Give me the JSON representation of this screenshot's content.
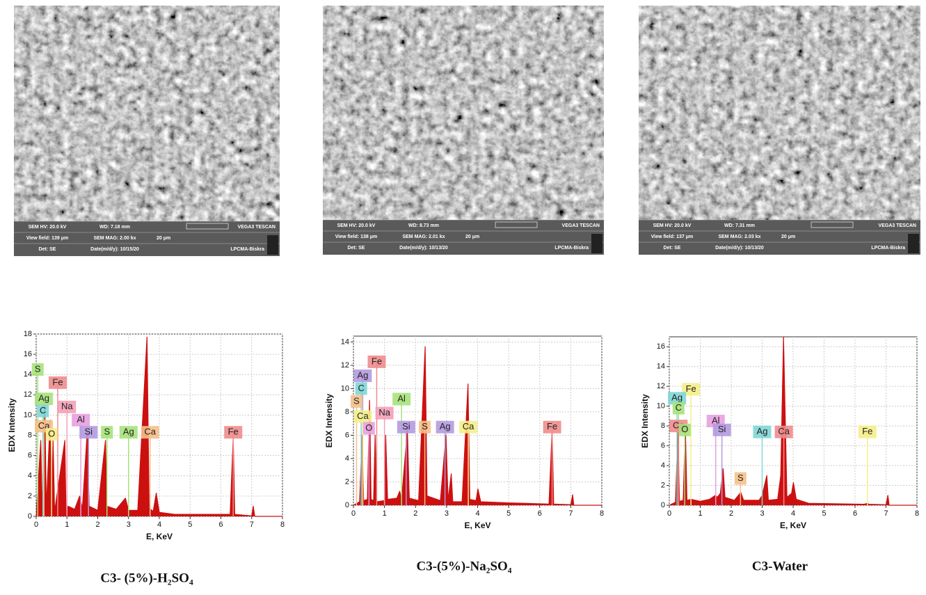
{
  "sem_images": [
    {
      "hv": "SEM HV: 20.0 kV",
      "wd": "WD: 7.18 mm",
      "brand": "VEGA3 TESCAN",
      "view_field": "View field: 139 μm",
      "mag": "SEM MAG: 2.00 kx",
      "scale": "20 μm",
      "det": "Det: SE",
      "date": "Date(m/d/y): 10/15/20",
      "lab": "LPCMA-Biskra"
    },
    {
      "hv": "SEM HV: 20.0 kV",
      "wd": "WD: 8.73 mm",
      "brand": "VEGA3 TESCAN",
      "view_field": "View field: 138 μm",
      "mag": "SEM MAG: 2.01 kx",
      "scale": "20 μm",
      "det": "Det: SE",
      "date": "Date(m/d/y): 10/13/20",
      "lab": "LPCMA-Biskra"
    },
    {
      "hv": "SEM HV: 20.0 kV",
      "wd": "WD: 7.31 mm",
      "brand": "VEGA3 TESCAN",
      "view_field": "View field: 137 μm",
      "mag": "SEM MAG: 2.03 kx",
      "scale": "20 μm",
      "det": "Det: SE",
      "date": "Date(m/d/y): 10/13/20",
      "lab": "LPCMA-Biskra"
    }
  ],
  "chart_data": [
    {
      "type": "line",
      "title": "C3- (5%)-H₂SO₄",
      "xlabel": "E, KeV",
      "ylabel": "EDX Intensity",
      "color": "#cc1010",
      "grid": true,
      "xlim": [
        0,
        8
      ],
      "ylim": [
        0,
        18
      ],
      "xticks": [
        0,
        1,
        2,
        3,
        4,
        5,
        6,
        7,
        8
      ],
      "yticks": [
        0,
        2,
        4,
        6,
        8,
        10,
        12,
        14,
        16,
        18
      ],
      "x": [
        0,
        0.15,
        0.2,
        0.28,
        0.33,
        0.45,
        0.5,
        0.55,
        0.6,
        0.93,
        0.97,
        1.04,
        1.25,
        1.41,
        1.5,
        1.66,
        1.72,
        2.0,
        2.25,
        2.3,
        2.6,
        2.9,
        3.0,
        3.3,
        3.6,
        3.67,
        3.8,
        3.9,
        4.0,
        4.5,
        6.3,
        6.4,
        6.45,
        7.0,
        7.05,
        7.1,
        8
      ],
      "values": [
        0,
        7.5,
        0.5,
        11,
        0.8,
        9.5,
        0.8,
        7.5,
        0.5,
        7.5,
        0.3,
        1,
        0.7,
        2,
        0.8,
        8.5,
        1,
        0.6,
        7.5,
        1,
        0.7,
        1.8,
        0.6,
        0.6,
        17.7,
        0.8,
        0.5,
        2.3,
        0.4,
        0.2,
        0.2,
        7.8,
        0.2,
        0.05,
        1,
        0,
        0
      ],
      "annotations": [
        {
          "text": "S",
          "x": 0.05,
          "y": 14.5,
          "color": "#a6e27a"
        },
        {
          "text": "Fe",
          "x": 0.7,
          "y": 13.2,
          "color": "#f08c8c"
        },
        {
          "text": "Ag",
          "x": 0.25,
          "y": 11.6,
          "color": "#a6e27a"
        },
        {
          "text": "C",
          "x": 0.22,
          "y": 10.4,
          "color": "#7fd6d6"
        },
        {
          "text": "Na",
          "x": 1.0,
          "y": 10.8,
          "color": "#f3a0b8"
        },
        {
          "text": "Al",
          "x": 1.45,
          "y": 9.5,
          "color": "#e8a0e0"
        },
        {
          "text": "Ca",
          "x": 0.25,
          "y": 8.9,
          "color": "#f5c08a"
        },
        {
          "text": "O",
          "x": 0.5,
          "y": 8.1,
          "color": "#f5ee8a"
        },
        {
          "text": "Si",
          "x": 1.7,
          "y": 8.3,
          "color": "#b49ae0"
        },
        {
          "text": "S",
          "x": 2.3,
          "y": 8.3,
          "color": "#a6e27a"
        },
        {
          "text": "Ag",
          "x": 3.0,
          "y": 8.3,
          "color": "#a6e27a"
        },
        {
          "text": "Ca",
          "x": 3.7,
          "y": 8.3,
          "color": "#f5c08a"
        },
        {
          "text": "Fe",
          "x": 6.4,
          "y": 8.3,
          "color": "#f08c8c"
        }
      ]
    },
    {
      "type": "line",
      "title": "C3-(5%)-Na₂SO₄",
      "xlabel": "E, KeV",
      "ylabel": "EDX Intensity",
      "color": "#cc1010",
      "grid": true,
      "xlim": [
        0,
        8
      ],
      "ylim": [
        0,
        14.5
      ],
      "xticks": [
        0,
        1,
        2,
        3,
        4,
        5,
        6,
        7,
        8
      ],
      "yticks": [
        0,
        2,
        4,
        6,
        8,
        10,
        12,
        14
      ],
      "x": [
        0,
        0.2,
        0.28,
        0.33,
        0.45,
        0.52,
        0.57,
        0.65,
        0.7,
        0.75,
        1.0,
        1.04,
        1.1,
        1.4,
        1.49,
        1.55,
        1.74,
        1.8,
        2.1,
        2.31,
        2.37,
        2.8,
        2.98,
        3.05,
        3.15,
        3.2,
        3.5,
        3.69,
        3.75,
        3.95,
        4.01,
        4.1,
        5.0,
        6.3,
        6.4,
        6.45,
        7.0,
        7.06,
        7.1,
        8
      ],
      "values": [
        0,
        0.3,
        6,
        0.4,
        0.5,
        9,
        0.5,
        0.4,
        6,
        0.3,
        0.4,
        6,
        0.5,
        0.6,
        1.2,
        0.5,
        6.5,
        0.6,
        0.4,
        13.6,
        0.8,
        0.4,
        6,
        0.4,
        2.7,
        0.3,
        0.3,
        10.4,
        0.5,
        0.4,
        1.4,
        0.3,
        0.2,
        0.1,
        6.5,
        0.1,
        0.05,
        0.9,
        0,
        0
      ],
      "annotations": [
        {
          "text": "Fe",
          "x": 0.75,
          "y": 12.3,
          "color": "#f08c8c"
        },
        {
          "text": "Ag",
          "x": 0.3,
          "y": 11.1,
          "color": "#b49ae0"
        },
        {
          "text": "C",
          "x": 0.25,
          "y": 10.0,
          "color": "#7fd6d6"
        },
        {
          "text": "S",
          "x": 0.1,
          "y": 8.9,
          "color": "#f5c08a"
        },
        {
          "text": "Al",
          "x": 1.55,
          "y": 9.1,
          "color": "#a6e27a"
        },
        {
          "text": "Na",
          "x": 1.0,
          "y": 7.9,
          "color": "#f3a0b8"
        },
        {
          "text": "Ca",
          "x": 0.3,
          "y": 7.6,
          "color": "#f5ee8a"
        },
        {
          "text": "O",
          "x": 0.5,
          "y": 6.6,
          "color": "#e8a0e0"
        },
        {
          "text": "Si",
          "x": 1.7,
          "y": 6.7,
          "color": "#b49ae0"
        },
        {
          "text": "S",
          "x": 2.3,
          "y": 6.7,
          "color": "#f5c08a"
        },
        {
          "text": "Ag",
          "x": 2.95,
          "y": 6.7,
          "color": "#b49ae0"
        },
        {
          "text": "Ca",
          "x": 3.7,
          "y": 6.7,
          "color": "#f5ee8a"
        },
        {
          "text": "Fe",
          "x": 6.4,
          "y": 6.7,
          "color": "#f08c8c"
        }
      ]
    },
    {
      "type": "line",
      "title": "C3-Water",
      "xlabel": "E, KeV",
      "ylabel": "EDX Intensity",
      "color": "#cc1010",
      "grid": true,
      "xlim": [
        0,
        8
      ],
      "ylim": [
        0,
        17
      ],
      "xticks": [
        0,
        1,
        2,
        3,
        4,
        5,
        6,
        7,
        8
      ],
      "yticks": [
        0,
        2,
        4,
        6,
        8,
        10,
        12,
        14,
        16
      ],
      "x": [
        0,
        0.2,
        0.28,
        0.33,
        0.45,
        0.52,
        0.57,
        0.7,
        1.0,
        1.3,
        1.49,
        1.55,
        1.65,
        1.74,
        1.8,
        2.1,
        2.31,
        2.4,
        2.9,
        3.0,
        3.15,
        3.2,
        3.5,
        3.6,
        3.69,
        3.8,
        3.95,
        4.01,
        4.1,
        4.5,
        6.3,
        6.4,
        6.45,
        7.0,
        7.06,
        7.1,
        8
      ],
      "values": [
        0,
        0.3,
        7.5,
        0.4,
        0.5,
        7.8,
        0.5,
        0.6,
        0.4,
        0.6,
        1,
        0.8,
        1.2,
        3.7,
        0.8,
        0.5,
        1.3,
        0.5,
        0.5,
        1,
        3,
        0.5,
        0.6,
        3,
        17,
        0.8,
        1.2,
        2.3,
        0.6,
        0.2,
        0.1,
        0.2,
        0.1,
        0.05,
        1,
        0,
        0
      ],
      "annotations": [
        {
          "text": "Fe",
          "x": 0.7,
          "y": 11.7,
          "color": "#f5ee8a"
        },
        {
          "text": "Ag",
          "x": 0.25,
          "y": 10.8,
          "color": "#7fd6d6"
        },
        {
          "text": "C",
          "x": 0.3,
          "y": 9.8,
          "color": "#a6e27a"
        },
        {
          "text": "Ca",
          "x": 0.3,
          "y": 8.0,
          "color": "#f08c8c"
        },
        {
          "text": "O",
          "x": 0.5,
          "y": 7.6,
          "color": "#a6e27a"
        },
        {
          "text": "Al",
          "x": 1.5,
          "y": 8.5,
          "color": "#e8a0e0"
        },
        {
          "text": "Si",
          "x": 1.7,
          "y": 7.6,
          "color": "#b49ae0"
        },
        {
          "text": "S",
          "x": 2.3,
          "y": 2.7,
          "color": "#f5c08a"
        },
        {
          "text": "Ag",
          "x": 3.0,
          "y": 7.4,
          "color": "#7fd6d6"
        },
        {
          "text": "Ca",
          "x": 3.7,
          "y": 7.4,
          "color": "#f08c8c"
        },
        {
          "text": "Fe",
          "x": 6.4,
          "y": 7.4,
          "color": "#f5ee8a"
        }
      ]
    }
  ]
}
